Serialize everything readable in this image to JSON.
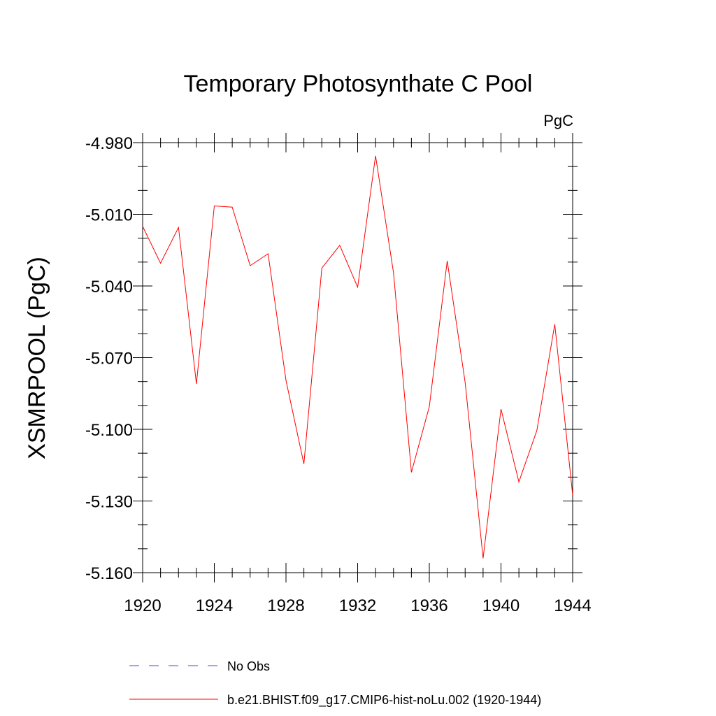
{
  "chart_data": {
    "type": "line",
    "title": "Temporary Photosynthate C Pool",
    "units": "PgC",
    "ylabel": "XSMRPOOL  (PgC)",
    "xlabel": "",
    "xlim": [
      1920,
      1944
    ],
    "ylim": [
      -5.16,
      -4.98
    ],
    "xticks": [
      1920,
      1924,
      1928,
      1932,
      1936,
      1940,
      1944
    ],
    "xtick_labels": [
      "1920",
      "1924",
      "1928",
      "1932",
      "1936",
      "1940",
      "1944"
    ],
    "yticks": [
      -4.98,
      -5.01,
      -5.04,
      -5.07,
      -5.1,
      -5.13,
      -5.16
    ],
    "ytick_labels": [
      "-4.980",
      "-5.010",
      "-5.040",
      "-5.070",
      "-5.100",
      "-5.130",
      "-5.160"
    ],
    "grid": false,
    "legend_position": "bottom",
    "series": [
      {
        "name": "b.e21.BHIST.f09_g17.CMIP6-hist-noLu.002 (1920-1944)",
        "color": "#ff0000",
        "style": "solid",
        "x": [
          1920,
          1921,
          1922,
          1923,
          1924,
          1925,
          1926,
          1927,
          1928,
          1929,
          1930,
          1931,
          1932,
          1933,
          1934,
          1935,
          1936,
          1937,
          1938,
          1939,
          1940,
          1941,
          1942,
          1943,
          1944
        ],
        "y": [
          -5.015,
          -5.0305,
          -5.0155,
          -5.081,
          -5.0065,
          -5.007,
          -5.0315,
          -5.0265,
          -5.0795,
          -5.1145,
          -5.0325,
          -5.023,
          -5.0405,
          -4.9855,
          -5.0345,
          -5.118,
          -5.0905,
          -5.0295,
          -5.0805,
          -5.154,
          -5.0915,
          -5.122,
          -5.1005,
          -5.056,
          -5.1275
        ]
      }
    ],
    "legend": [
      {
        "label": "No Obs",
        "color": "#4b4bcc",
        "style": "dashed"
      },
      {
        "label": "b.e21.BHIST.f09_g17.CMIP6-hist-noLu.002 (1920-1944)",
        "color": "#ff0000",
        "style": "solid"
      }
    ]
  }
}
